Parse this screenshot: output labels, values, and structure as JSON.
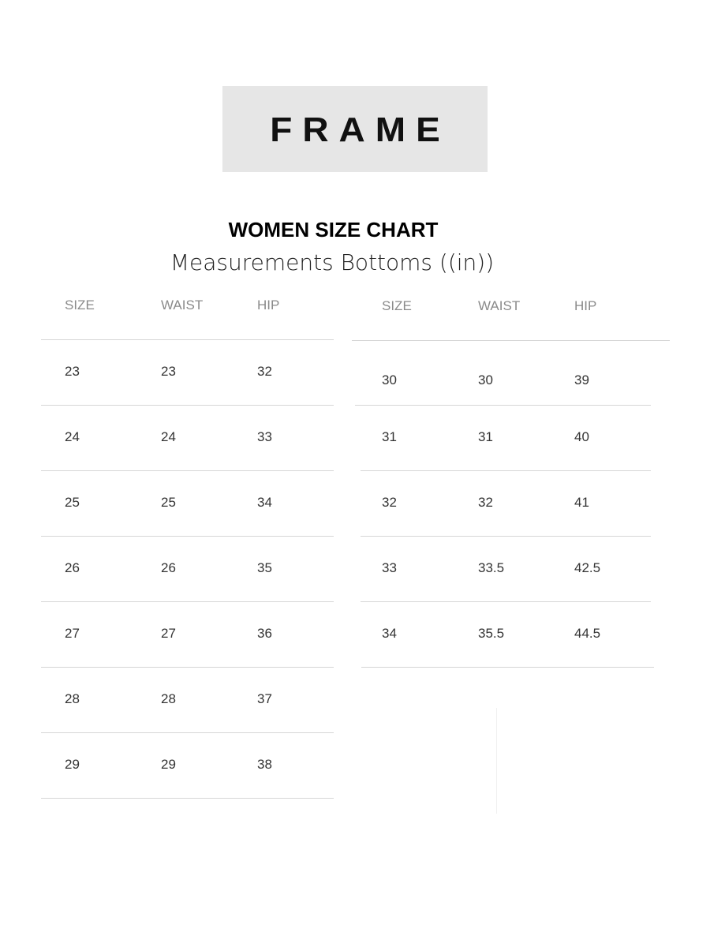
{
  "brand": "FRAME",
  "title": "WOMEN SIZE CHART",
  "subtitle": "Measurements Bottoms ((in))",
  "tables": [
    {
      "headers": [
        "SIZE",
        "WAIST",
        "HIP"
      ],
      "rows": [
        [
          "23",
          "23",
          "32"
        ],
        [
          "24",
          "24",
          "33"
        ],
        [
          "25",
          "25",
          "34"
        ],
        [
          "26",
          "26",
          "35"
        ],
        [
          "27",
          "27",
          "36"
        ],
        [
          "28",
          "28",
          "37"
        ],
        [
          "29",
          "29",
          "38"
        ]
      ]
    },
    {
      "headers": [
        "SIZE",
        "WAIST",
        "HIP"
      ],
      "rows": [
        [
          "30",
          "30",
          "39"
        ],
        [
          "31",
          "31",
          "40"
        ],
        [
          "32",
          "32",
          "41"
        ],
        [
          "33",
          "33.5",
          "42.5"
        ],
        [
          "34",
          "35.5",
          "44.5"
        ]
      ]
    }
  ]
}
